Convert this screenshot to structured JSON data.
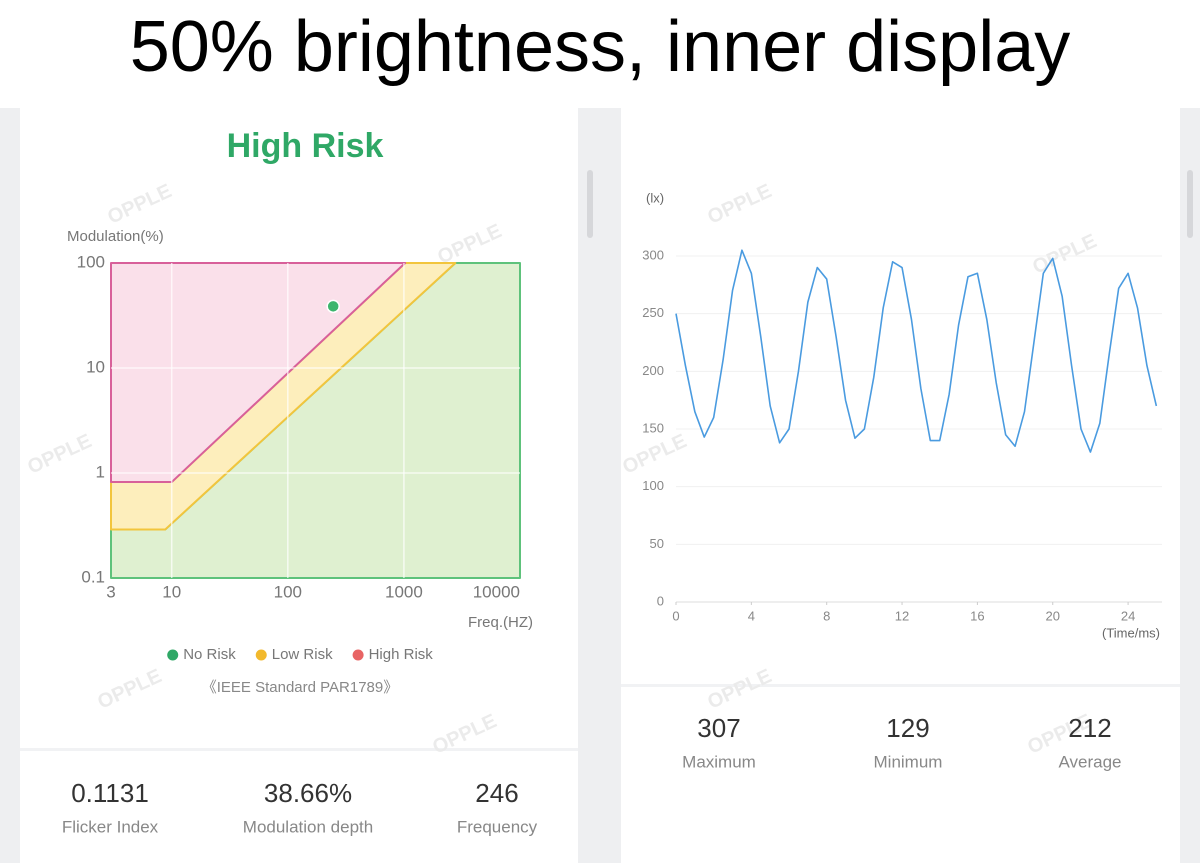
{
  "title": "50% brightness, inner display",
  "watermark": "OPPLE",
  "risk_label": "High Risk",
  "standard": "《IEEE Standard PAR1789》",
  "left_stats": [
    {
      "value": "0.1131",
      "label": "Flicker Index"
    },
    {
      "value": "38.66%",
      "label": "Modulation depth"
    },
    {
      "value": "246",
      "label": "Frequency"
    }
  ],
  "right_stats": [
    {
      "value": "307",
      "label": "Maximum"
    },
    {
      "value": "129",
      "label": "Minimum"
    },
    {
      "value": "212",
      "label": "Average"
    }
  ],
  "chart_data": [
    {
      "type": "risk-map",
      "y_label": "Modulation(%)",
      "x_label": "Freq.(HZ)",
      "xscale": "log",
      "yscale": "log",
      "xlim": [
        3,
        10000
      ],
      "ylim": [
        0.1,
        100
      ],
      "xticks": [
        3,
        10,
        100,
        1000,
        10000
      ],
      "yticks": [
        100,
        10,
        1,
        0.1
      ],
      "grid": true,
      "regions": [
        {
          "name": "No Risk",
          "color": "#2fa866",
          "fill": "#dff0d0",
          "stroke": "#5ec27b",
          "x": [
            3,
            8.8,
            2775,
            10000,
            10000,
            3
          ],
          "y": [
            0.29,
            0.29,
            100,
            100,
            0.1,
            0.1
          ]
        },
        {
          "name": "Low Risk",
          "color": "#f2b92d",
          "fill": "#fdeebc",
          "stroke": "#f2c53d",
          "x": [
            3,
            10,
            1025,
            2775,
            8.8,
            3
          ],
          "y": [
            0.82,
            0.82,
            100,
            100,
            0.29,
            0.29
          ]
        },
        {
          "name": "High Risk",
          "color": "#e86464",
          "fill": "#fae0ea",
          "stroke": "#d8609a",
          "x": [
            3,
            1025,
            10,
            3
          ],
          "y": [
            100,
            100,
            0.82,
            0.82
          ]
        }
      ],
      "point": {
        "x": 246,
        "y": 38.66,
        "color": "#3cb56d"
      }
    },
    {
      "type": "line",
      "y_label": "(lx)",
      "x_label": "(Time/ms)",
      "xlim": [
        0,
        25.8
      ],
      "ylim": [
        0,
        300
      ],
      "xticks": [
        0,
        4,
        8,
        12,
        16,
        20,
        24
      ],
      "yticks": [
        0,
        50,
        100,
        150,
        200,
        250,
        300
      ],
      "grid": true,
      "color": "#4a9be0",
      "x": [
        0,
        0.5,
        1,
        1.5,
        2,
        2.5,
        3,
        3.5,
        4,
        4.5,
        5,
        5.5,
        6,
        6.5,
        7,
        7.5,
        8,
        8.5,
        9,
        9.5,
        10,
        10.5,
        11,
        11.5,
        12,
        12.5,
        13,
        13.5,
        14,
        14.5,
        15,
        15.5,
        16,
        16.5,
        17,
        17.5,
        18,
        18.5,
        19,
        19.5,
        20,
        20.5,
        21,
        21.5,
        22,
        22.5,
        23,
        23.5,
        24,
        24.5,
        25,
        25.5
      ],
      "values": [
        250,
        205,
        165,
        143,
        160,
        210,
        270,
        305,
        285,
        230,
        170,
        138,
        150,
        200,
        260,
        290,
        280,
        230,
        175,
        142,
        150,
        195,
        255,
        295,
        290,
        245,
        185,
        140,
        140,
        180,
        240,
        282,
        285,
        245,
        190,
        145,
        135,
        165,
        225,
        285,
        298,
        265,
        205,
        150,
        130,
        155,
        215,
        272,
        285,
        255,
        205,
        170
      ]
    }
  ]
}
